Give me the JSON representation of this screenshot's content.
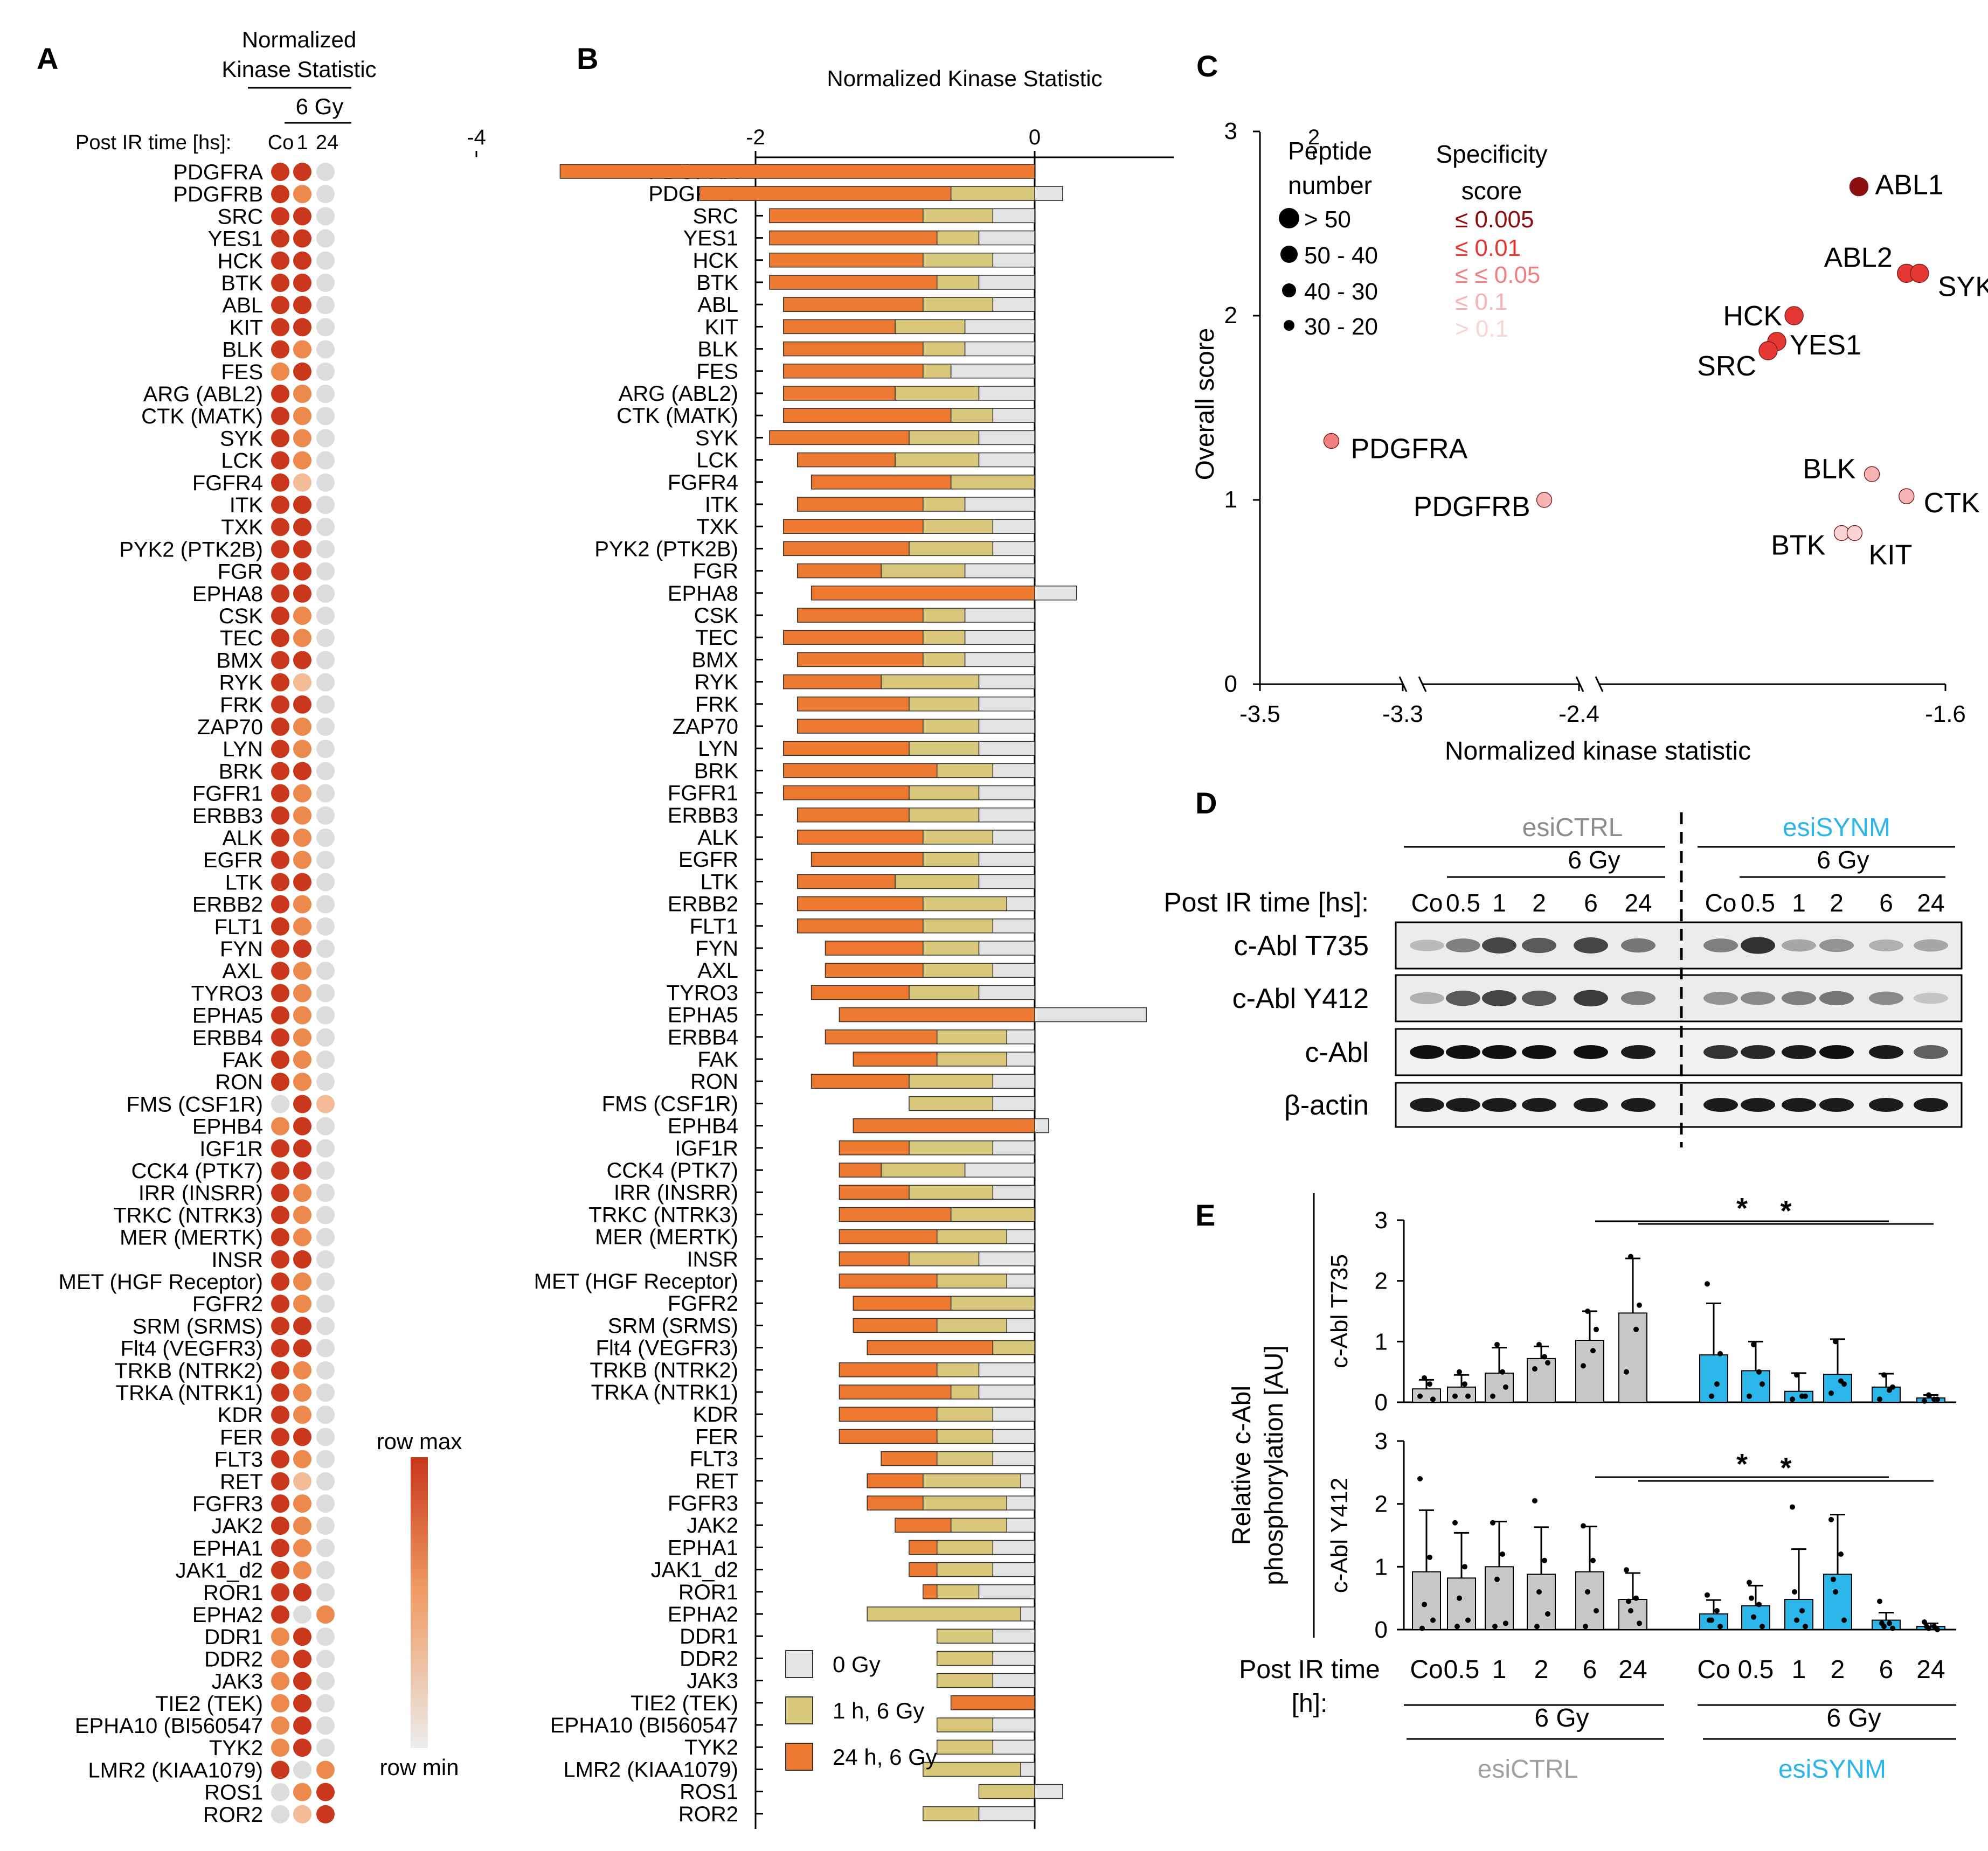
{
  "panels": {
    "A": "A",
    "B": "B",
    "C": "C",
    "D": "D",
    "E": "E"
  },
  "panel_a": {
    "header_line1": "Normalized",
    "header_line2": "Kinase Statistic",
    "dose_label": "6 Gy",
    "time_label": "Post IR time [hs]:",
    "columns": [
      "Co",
      "1",
      "24"
    ],
    "legend_max": "row max",
    "legend_min": "row min",
    "colors": {
      "max": "#c9381c",
      "mid": "#ee9a61",
      "min": "#dcdcdc"
    },
    "levels": [
      [
        0,
        0,
        3
      ],
      [
        0,
        1,
        3
      ],
      [
        0,
        0,
        3
      ],
      [
        0,
        0,
        3
      ],
      [
        0,
        0,
        3
      ],
      [
        0,
        0,
        3
      ],
      [
        0,
        0,
        3
      ],
      [
        0,
        0,
        3
      ],
      [
        0,
        1,
        3
      ],
      [
        1,
        0,
        3
      ],
      [
        0,
        1,
        3
      ],
      [
        0,
        1,
        3
      ],
      [
        0,
        1,
        3
      ],
      [
        0,
        1,
        3
      ],
      [
        0,
        2,
        3
      ],
      [
        0,
        0,
        3
      ],
      [
        0,
        0,
        3
      ],
      [
        0,
        0,
        3
      ],
      [
        0,
        0,
        3
      ],
      [
        0,
        0,
        3
      ],
      [
        0,
        1,
        3
      ],
      [
        0,
        1,
        3
      ],
      [
        0,
        0,
        3
      ],
      [
        0,
        2,
        3
      ],
      [
        0,
        0,
        3
      ],
      [
        0,
        1,
        3
      ],
      [
        0,
        1,
        3
      ],
      [
        0,
        0,
        3
      ],
      [
        0,
        1,
        3
      ],
      [
        0,
        1,
        3
      ],
      [
        0,
        1,
        3
      ],
      [
        0,
        1,
        3
      ],
      [
        0,
        0,
        3
      ],
      [
        0,
        1,
        3
      ],
      [
        0,
        1,
        3
      ],
      [
        0,
        0,
        3
      ],
      [
        0,
        1,
        3
      ],
      [
        0,
        1,
        3
      ],
      [
        0,
        1,
        3
      ],
      [
        0,
        1,
        3
      ],
      [
        0,
        1,
        3
      ],
      [
        0,
        1,
        3
      ],
      [
        3,
        0,
        2
      ],
      [
        1,
        0,
        3
      ],
      [
        0,
        0,
        3
      ],
      [
        0,
        0,
        3
      ],
      [
        0,
        1,
        3
      ],
      [
        0,
        1,
        3
      ],
      [
        0,
        1,
        3
      ],
      [
        0,
        0,
        3
      ],
      [
        0,
        1,
        3
      ],
      [
        0,
        1,
        3
      ],
      [
        0,
        0,
        3
      ],
      [
        0,
        0,
        3
      ],
      [
        0,
        1,
        3
      ],
      [
        0,
        1,
        3
      ],
      [
        0,
        1,
        3
      ],
      [
        0,
        0,
        3
      ],
      [
        0,
        1,
        3
      ],
      [
        0,
        2,
        3
      ],
      [
        0,
        1,
        3
      ],
      [
        0,
        1,
        3
      ],
      [
        0,
        1,
        3
      ],
      [
        0,
        1,
        3
      ],
      [
        0,
        0,
        3
      ],
      [
        0,
        3,
        1
      ],
      [
        1,
        0,
        3
      ],
      [
        1,
        0,
        3
      ],
      [
        1,
        0,
        3
      ],
      [
        1,
        0,
        3
      ],
      [
        1,
        0,
        3
      ],
      [
        1,
        0,
        3
      ],
      [
        0,
        3,
        1
      ],
      [
        3,
        1,
        0
      ],
      [
        3,
        2,
        0
      ]
    ]
  },
  "kinases": [
    "PDGFRA",
    "PDGFRB",
    "SRC",
    "YES1",
    "HCK",
    "BTK",
    "ABL",
    "KIT",
    "BLK",
    "FES",
    "ARG (ABL2)",
    "CTK (MATK)",
    "SYK",
    "LCK",
    "FGFR4",
    "ITK",
    "TXK",
    "PYK2 (PTK2B)",
    "FGR",
    "EPHA8",
    "CSK",
    "TEC",
    "BMX",
    "RYK",
    "FRK",
    "ZAP70",
    "LYN",
    "BRK",
    "FGFR1",
    "ERBB3",
    "ALK",
    "EGFR",
    "LTK",
    "ERBB2",
    "FLT1",
    "FYN",
    "AXL",
    "TYRO3",
    "EPHA5",
    "ERBB4",
    "FAK",
    "RON",
    "FMS (CSF1R)",
    "EPHB4",
    "IGF1R",
    "CCK4 (PTK7)",
    "IRR (INSRR)",
    "TRKC (NTRK3)",
    "MER (MERTK)",
    "INSR",
    "MET (HGF Receptor)",
    "FGFR2",
    "SRM (SRMS)",
    "Flt4 (VEGFR3)",
    "TRKB (NTRK2)",
    "TRKA (NTRK1)",
    "KDR",
    "FER",
    "FLT3",
    "RET",
    "FGFR3",
    "JAK2",
    "EPHA1",
    "JAK1_d2",
    "ROR1",
    "EPHA2",
    "DDR1",
    "DDR2",
    "JAK3",
    "TIE2 (TEK)",
    "EPHA10 (BI560547",
    "TYK2",
    "LMR2 (KIAA1079)",
    "ROS1",
    "ROR2"
  ],
  "panel_b": {
    "title": "Normalized Kinase Statistic",
    "axis_ticks": [
      "-4",
      "-2",
      "0",
      "2"
    ],
    "legend": [
      {
        "label": "0 Gy",
        "color": "#e3e3e3"
      },
      {
        "label": "1 h, 6 Gy",
        "color": "#d9c77b"
      },
      {
        "label": "24 h, 6 Gy",
        "color": "#ee7a32"
      }
    ],
    "chart_data": {
      "type": "bar",
      "orientation": "horizontal",
      "xlabel": "Normalized Kinase Statistic",
      "xlim": [
        -4,
        2
      ],
      "series_names": [
        "0 Gy",
        "1 h, 6 Gy",
        "24 h, 6 Gy"
      ],
      "note": "values per kinase as [0 Gy, 1 h 6 Gy, 24 h 6 Gy]; cumulative outward from zero",
      "values": [
        [
          0.0,
          0.0,
          -3.4
        ],
        [
          0.2,
          -0.6,
          -1.8
        ],
        [
          -0.3,
          -0.5,
          -1.1
        ],
        [
          -0.4,
          -0.3,
          -1.2
        ],
        [
          -0.3,
          -0.5,
          -1.1
        ],
        [
          -0.4,
          -0.3,
          -1.2
        ],
        [
          -0.3,
          -0.5,
          -1.0
        ],
        [
          -0.5,
          -0.5,
          -0.8
        ],
        [
          -0.5,
          -0.3,
          -1.0
        ],
        [
          -0.6,
          -0.2,
          -1.0
        ],
        [
          -0.4,
          -0.6,
          -0.8
        ],
        [
          -0.3,
          -0.3,
          -1.2
        ],
        [
          -0.4,
          -0.5,
          -1.0
        ],
        [
          -0.4,
          -0.6,
          -0.7
        ],
        [
          0.0,
          -0.6,
          -1.0
        ],
        [
          -0.5,
          -0.3,
          -0.9
        ],
        [
          -0.3,
          -0.5,
          -1.0
        ],
        [
          -0.3,
          -0.6,
          -0.9
        ],
        [
          -0.5,
          -0.6,
          -0.6
        ],
        [
          0.3,
          0.0,
          -1.6
        ],
        [
          -0.5,
          -0.3,
          -0.9
        ],
        [
          -0.5,
          -0.3,
          -1.0
        ],
        [
          -0.5,
          -0.3,
          -0.9
        ],
        [
          -0.4,
          -0.7,
          -0.7
        ],
        [
          -0.4,
          -0.5,
          -0.8
        ],
        [
          -0.4,
          -0.4,
          -0.9
        ],
        [
          -0.4,
          -0.5,
          -0.9
        ],
        [
          -0.3,
          -0.4,
          -1.1
        ],
        [
          -0.4,
          -0.5,
          -0.9
        ],
        [
          -0.4,
          -0.5,
          -0.8
        ],
        [
          -0.3,
          -0.5,
          -0.9
        ],
        [
          -0.4,
          -0.4,
          -0.8
        ],
        [
          -0.4,
          -0.6,
          -0.7
        ],
        [
          -0.2,
          -0.6,
          -0.9
        ],
        [
          -0.3,
          -0.5,
          -0.9
        ],
        [
          -0.4,
          -0.4,
          -0.7
        ],
        [
          -0.3,
          -0.5,
          -0.7
        ],
        [
          -0.4,
          -0.5,
          -0.7
        ],
        [
          0.8,
          0.0,
          -1.4
        ],
        [
          -0.2,
          -0.5,
          -0.8
        ],
        [
          -0.2,
          -0.5,
          -0.6
        ],
        [
          -0.3,
          -0.6,
          -0.7
        ],
        [
          -0.3,
          -0.6,
          0.0
        ],
        [
          0.1,
          0.0,
          -1.3
        ],
        [
          -0.3,
          -0.6,
          -0.5
        ],
        [
          -0.5,
          -0.6,
          -0.3
        ],
        [
          -0.3,
          -0.6,
          -0.5
        ],
        [
          0.0,
          -0.6,
          -0.8
        ],
        [
          -0.2,
          -0.5,
          -0.7
        ],
        [
          -0.4,
          -0.5,
          -0.5
        ],
        [
          -0.2,
          -0.5,
          -0.7
        ],
        [
          0.0,
          -0.6,
          -0.7
        ],
        [
          -0.2,
          -0.5,
          -0.6
        ],
        [
          0.0,
          -0.3,
          -0.9
        ],
        [
          -0.4,
          -0.3,
          -0.7
        ],
        [
          -0.4,
          -0.2,
          -0.8
        ],
        [
          -0.3,
          -0.4,
          -0.7
        ],
        [
          -0.3,
          -0.4,
          -0.7
        ],
        [
          -0.3,
          -0.4,
          -0.4
        ],
        [
          -0.1,
          -0.7,
          -0.4
        ],
        [
          -0.2,
          -0.6,
          -0.4
        ],
        [
          -0.2,
          -0.4,
          -0.4
        ],
        [
          -0.3,
          -0.4,
          -0.2
        ],
        [
          -0.3,
          -0.4,
          -0.2
        ],
        [
          -0.4,
          -0.3,
          -0.1
        ],
        [
          -0.1,
          -1.1,
          0.0
        ],
        [
          -0.3,
          -0.4,
          0.0
        ],
        [
          -0.3,
          -0.4,
          0.0
        ],
        [
          -0.3,
          -0.4,
          0.0
        ],
        [
          0.0,
          0.0,
          -0.6
        ],
        [
          -0.3,
          -0.4,
          0.0
        ],
        [
          -0.3,
          -0.4,
          0.0
        ],
        [
          -0.1,
          -0.7,
          0.0
        ],
        [
          0.2,
          -0.4,
          0.0
        ],
        [
          -0.4,
          -0.4,
          0.0
        ]
      ]
    }
  },
  "panel_c": {
    "peptide_title": "Peptide\nnumber",
    "peptide_bins": [
      "> 50",
      "50 - 40",
      "40 - 30",
      "30 - 20"
    ],
    "spec_title": "Specificity\nscore",
    "spec_bins": [
      {
        "label": "≤ 0.005",
        "color": "#8b0f0f"
      },
      {
        "label": "≤ 0.01",
        "color": "#e53834"
      },
      {
        "label": "≤ ≤ 0.05",
        "color": "#f07f7f"
      },
      {
        "label": "≤ 0.1",
        "color": "#f6b4b4"
      },
      {
        "label": "> 0.1",
        "color": "#fad4d4"
      }
    ],
    "chart_data": {
      "type": "scatter",
      "xlabel": "Normalized kinase statistic",
      "ylabel": "Overall score",
      "x_ticks": [
        "-3.5",
        "-3.3",
        "-2.4",
        "-1.6"
      ],
      "y_ticks": [
        "0",
        "1",
        "2",
        "3"
      ],
      "x_axis_broken": true,
      "ylim": [
        0,
        3
      ],
      "points": [
        {
          "label": "ABL1",
          "x": -1.8,
          "y": 2.7,
          "spec": 0
        },
        {
          "label": "ABL2",
          "x": -1.69,
          "y": 2.23,
          "spec": 1
        },
        {
          "label": "SYK",
          "x": -1.66,
          "y": 2.23,
          "spec": 1
        },
        {
          "label": "HCK",
          "x": -1.95,
          "y": 2.0,
          "spec": 1
        },
        {
          "label": "YES1",
          "x": -1.99,
          "y": 1.86,
          "spec": 1
        },
        {
          "label": "SRC",
          "x": -2.01,
          "y": 1.81,
          "spec": 1
        },
        {
          "label": "PDGFRA",
          "x": -3.4,
          "y": 1.32,
          "spec": 2
        },
        {
          "label": "PDGFRB",
          "x": -2.6,
          "y": 1.0,
          "spec": 3
        },
        {
          "label": "BLK",
          "x": -1.77,
          "y": 1.14,
          "spec": 3
        },
        {
          "label": "CTK",
          "x": -1.69,
          "y": 1.02,
          "spec": 3
        },
        {
          "label": "BTK",
          "x": -1.84,
          "y": 0.82,
          "spec": 4
        },
        {
          "label": "KIT",
          "x": -1.81,
          "y": 0.82,
          "spec": 4
        }
      ]
    }
  },
  "panel_d": {
    "groups": [
      "esiCTRL",
      "esiSYNM"
    ],
    "group_colors": [
      "#8c8c8c",
      "#2bb5e8"
    ],
    "dose": "6 Gy",
    "time_label": "Post IR time [hs]:",
    "lanes": [
      "Co",
      "0.5",
      "1",
      "2",
      "6",
      "24",
      "Co",
      "0.5",
      "1",
      "2",
      "6",
      "24"
    ],
    "blots": [
      "c-Abl T735",
      "c-Abl Y412",
      "c-Abl",
      "β-actin"
    ],
    "band_intensity": [
      [
        0.25,
        0.55,
        0.85,
        0.75,
        0.85,
        0.6,
        0.55,
        0.95,
        0.35,
        0.45,
        0.3,
        0.35
      ],
      [
        0.3,
        0.75,
        0.85,
        0.75,
        0.9,
        0.55,
        0.45,
        0.5,
        0.55,
        0.6,
        0.5,
        0.2
      ],
      [
        0.95,
        0.95,
        0.95,
        0.95,
        0.95,
        0.9,
        0.8,
        0.85,
        0.9,
        0.95,
        0.9,
        0.6
      ],
      [
        0.9,
        0.9,
        0.9,
        0.9,
        0.9,
        0.9,
        0.9,
        0.9,
        0.9,
        0.9,
        0.9,
        0.9
      ]
    ]
  },
  "panel_e": {
    "ylabel_outer": "Relative c-Abl\nphosphorylation  [AU]",
    "time_label": "Post IR time\n[h]:",
    "groups": [
      "esiCTRL",
      "esiSYNM"
    ],
    "dose": "6 Gy",
    "star": "*",
    "bar_colors": [
      "#c8c8c8",
      "#2bb5e8"
    ],
    "chart_data": [
      {
        "type": "bar",
        "ylabel": "c-Abl T735",
        "ylim": [
          0,
          3
        ],
        "y_ticks": [
          "0",
          "1",
          "2",
          "3"
        ],
        "categories": [
          "Co",
          "0.5",
          "1",
          "2",
          "6",
          "24",
          "Co",
          "0.5",
          "1",
          "2",
          "6",
          "24"
        ],
        "values": [
          0.22,
          0.25,
          0.48,
          0.72,
          1.02,
          1.47,
          0.78,
          0.52,
          0.18,
          0.46,
          0.25,
          0.07
        ],
        "errors": [
          0.15,
          0.2,
          0.42,
          0.2,
          0.48,
          0.9,
          0.85,
          0.48,
          0.3,
          0.58,
          0.22,
          0.05
        ],
        "points": [
          [
            0.1,
            0.3,
            0.4,
            0.05
          ],
          [
            0.1,
            0.3,
            0.5,
            0.1
          ],
          [
            0.1,
            0.5,
            0.95,
            0.25
          ],
          [
            0.55,
            0.75,
            0.95,
            0.65
          ],
          [
            0.6,
            0.85,
            1.5,
            1.2
          ],
          [
            0.5,
            1.2,
            2.4,
            1.6
          ],
          [
            1.95,
            0.3,
            0.1,
            0.8
          ],
          [
            0.1,
            0.5,
            0.95,
            0.3
          ],
          [
            0.05,
            0.1,
            0.45,
            0.1
          ],
          [
            0.15,
            0.35,
            1.0,
            0.3
          ],
          [
            0.05,
            0.2,
            0.45,
            0.25
          ],
          [
            0.02,
            0.05,
            0.12,
            0.05
          ]
        ],
        "significance": [
          {
            "from": 4,
            "to": 10,
            "label": "*"
          },
          {
            "from": 5,
            "to": 11,
            "label": "*"
          }
        ]
      },
      {
        "type": "bar",
        "ylabel": "c-Abl Y412",
        "ylim": [
          0,
          3
        ],
        "y_ticks": [
          "0",
          "1",
          "2",
          "3"
        ],
        "categories": [
          "Co",
          "0.5",
          "1",
          "2",
          "6",
          "24",
          "Co",
          "0.5",
          "1",
          "2",
          "6",
          "24"
        ],
        "values": [
          0.92,
          0.82,
          1.0,
          0.88,
          0.92,
          0.48,
          0.25,
          0.38,
          0.48,
          0.88,
          0.15,
          0.05
        ],
        "errors": [
          0.98,
          0.72,
          0.72,
          0.75,
          0.72,
          0.42,
          0.22,
          0.32,
          0.8,
          0.95,
          0.12,
          0.05
        ],
        "points": [
          [
            2.4,
            1.15,
            0.4,
            0.15,
            0.02
          ],
          [
            1.7,
            1.0,
            0.5,
            0.15,
            0.05
          ],
          [
            1.7,
            1.2,
            0.8,
            0.1,
            0.05
          ],
          [
            2.05,
            1.1,
            0.6,
            0.25,
            0.05
          ],
          [
            1.65,
            1.1,
            0.6,
            0.3,
            0.05
          ],
          [
            0.95,
            0.5,
            0.3,
            0.1,
            0.45
          ],
          [
            0.55,
            0.3,
            0.15,
            0.05,
            0.15
          ],
          [
            0.75,
            0.4,
            0.2,
            0.05,
            0.5
          ],
          [
            1.95,
            0.3,
            0.15,
            0.05,
            0.6
          ],
          [
            1.75,
            1.2,
            0.6,
            0.15,
            0.8
          ],
          [
            0.45,
            0.1,
            0.05,
            0.02,
            0.1
          ],
          [
            0.12,
            0.05,
            0.02,
            0.0,
            0.05
          ]
        ],
        "significance": [
          {
            "from": 4,
            "to": 10,
            "label": "*"
          },
          {
            "from": 5,
            "to": 11,
            "label": "*"
          }
        ]
      }
    ]
  }
}
